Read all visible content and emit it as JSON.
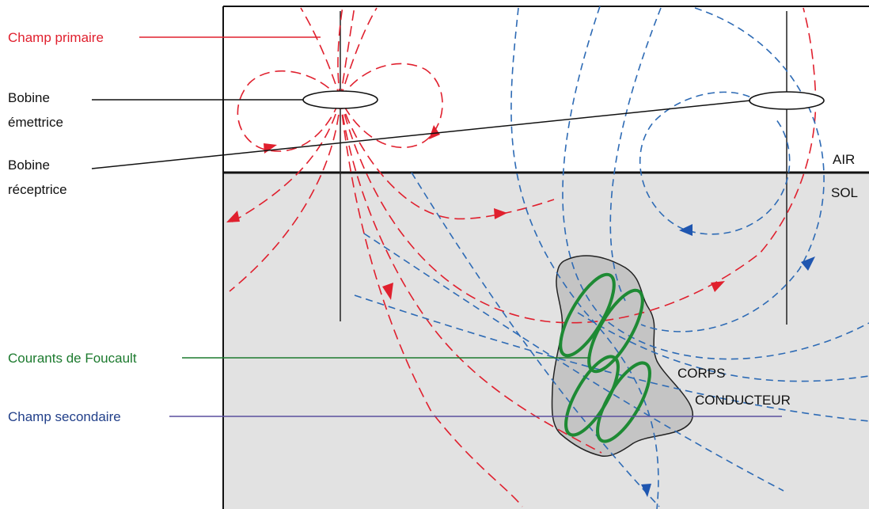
{
  "labels": {
    "primary_field": "Champ primaire",
    "transmitter_coil_l1": "Bobine",
    "transmitter_coil_l2": "émettrice",
    "receiver_coil_l1": "Bobine",
    "receiver_coil_l2": "réceptrice",
    "eddy_currents": "Courants de Foucault",
    "secondary_field": "Champ secondaire",
    "air": "AIR",
    "soil": "SOL",
    "conductor_l1": "CORPS",
    "conductor_l2": "CONDUCTEUR"
  },
  "colors": {
    "primary_field": "#e0202e",
    "secondary_field": "#2e6bb5",
    "eddy_currents": "#1e8a34",
    "soil": "#e2e2e2",
    "conductor": "#c4c4c4",
    "secondary_label": "#22408a",
    "eddy_label": "#1c7a2e"
  }
}
